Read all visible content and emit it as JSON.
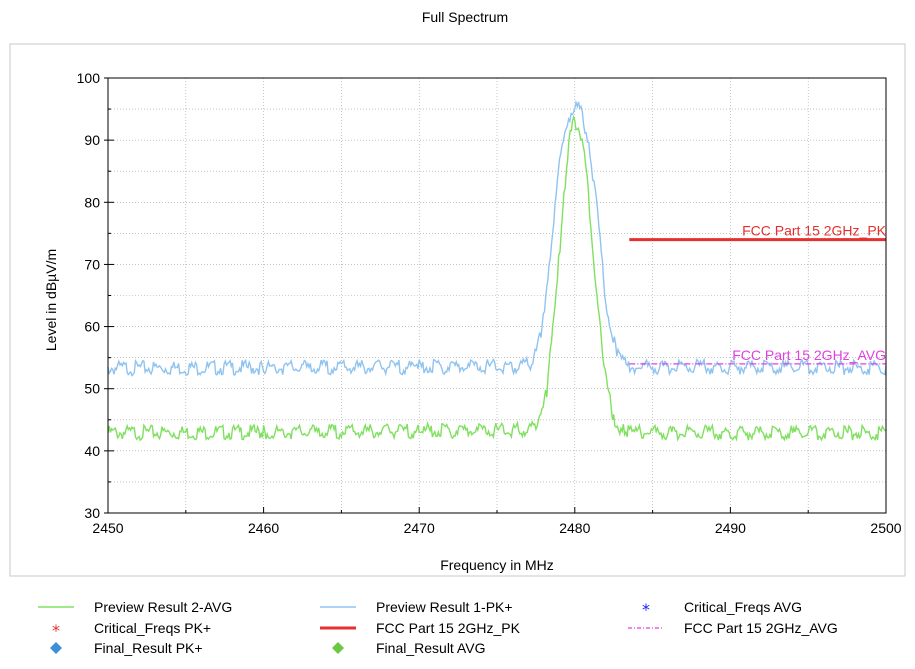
{
  "chart_data": {
    "type": "line",
    "title": "Full Spectrum",
    "xlabel": "Frequency in MHz",
    "ylabel": "Level in dBµV/m",
    "xlim": [
      2450,
      2500
    ],
    "ylim": [
      30,
      100
    ],
    "xticks": [
      2450,
      2460,
      2470,
      2480,
      2490,
      2500
    ],
    "yticks": [
      30,
      40,
      50,
      60,
      70,
      80,
      90,
      100
    ],
    "grid": true,
    "legend_position": "bottom",
    "series": [
      {
        "name": "Preview Result 2-AVG",
        "color": "#80e060",
        "x": [
          2450,
          2460,
          2470,
          2476,
          2477.5,
          2478.2,
          2478.8,
          2479.3,
          2479.7,
          2480.0,
          2480.3,
          2480.7,
          2481.2,
          2481.8,
          2482.5,
          2483.2,
          2484,
          2490,
          2500
        ],
        "y": [
          43.2,
          43.3,
          43.5,
          43.6,
          44.0,
          50.0,
          65.0,
          82.0,
          91.0,
          93.5,
          92.0,
          86.0,
          72.0,
          55.0,
          45.0,
          43.6,
          43.3,
          43.2,
          43.2
        ]
      },
      {
        "name": "Preview Result 1-PK+",
        "color": "#90c4f0",
        "x": [
          2450,
          2460,
          2470,
          2476,
          2477.3,
          2477.9,
          2478.5,
          2479.1,
          2479.6,
          2480.0,
          2480.4,
          2480.9,
          2481.4,
          2482.0,
          2482.7,
          2483.3,
          2484,
          2490,
          2500
        ],
        "y": [
          53.6,
          53.7,
          53.8,
          53.9,
          54.2,
          60.0,
          74.0,
          88.0,
          94.0,
          96.0,
          95.0,
          90.0,
          80.0,
          64.0,
          56.0,
          54.0,
          53.8,
          53.8,
          53.7
        ]
      },
      {
        "name": "FCC Part 15 2GHz_PK",
        "color": "#e53030",
        "x": [
          2483.5,
          2500
        ],
        "y": [
          74,
          74
        ]
      },
      {
        "name": "FCC Part 15 2GHz_AVG",
        "color": "#e040e0",
        "x": [
          2483.5,
          2500
        ],
        "y": [
          54,
          54
        ]
      }
    ],
    "limit_labels": [
      {
        "text": "FCC Part 15 2GHz_PK",
        "x": 2500,
        "y": 74,
        "color": "#e53030"
      },
      {
        "text": "FCC Part 15 2GHz_AVG",
        "x": 2500,
        "y": 54,
        "color": "#e040e0"
      }
    ],
    "legend": [
      {
        "label": "Preview Result 2-AVG",
        "marker": "line",
        "color": "#80e060"
      },
      {
        "label": "Preview Result 1-PK+",
        "marker": "line",
        "color": "#90c4f0"
      },
      {
        "label": "Critical_Freqs AVG",
        "marker": "asterisk",
        "color": "#1a1aff"
      },
      {
        "label": "Critical_Freqs PK+",
        "marker": "asterisk",
        "color": "#e53030"
      },
      {
        "label": "FCC Part 15 2GHz_PK",
        "marker": "thick-line",
        "color": "#e53030"
      },
      {
        "label": "FCC Part 15 2GHz_AVG",
        "marker": "dash-dot-line",
        "color": "#e040e0"
      },
      {
        "label": "Final_Result PK+",
        "marker": "diamond",
        "color": "#3a8fd8"
      },
      {
        "label": "Final_Result AVG",
        "marker": "diamond",
        "color": "#6ac840"
      }
    ]
  }
}
